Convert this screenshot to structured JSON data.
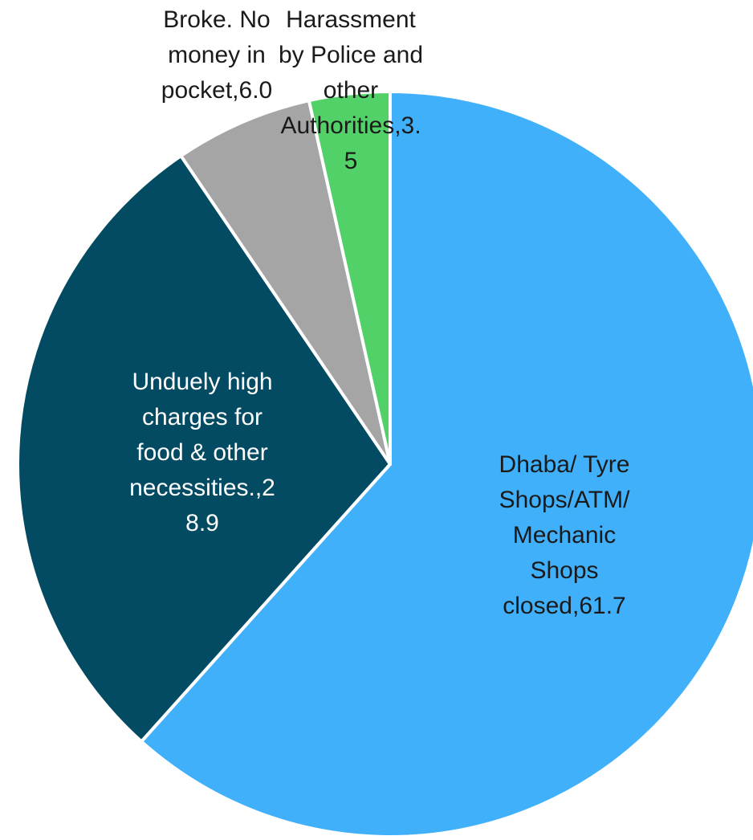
{
  "chart_data": {
    "type": "pie",
    "title": "",
    "start_angle_deg": 0,
    "direction": "clockwise",
    "legend": "none",
    "slices": [
      {
        "label": "Dhaba/ Tyre Shops/ATM/ Mechanic Shops closed",
        "value": 61.7,
        "display": "Dhaba/ Tyre Shops/ATM/ Mechanic Shops closed,61.7",
        "color": "#41b0fa",
        "text_color": "#1a1a1a"
      },
      {
        "label": "Unduely high charges for food & other necessities.",
        "value": 28.9,
        "display": "Unduely high charges for food & other necessities.,28.9",
        "color": "#034b63",
        "text_color": "#ffffff"
      },
      {
        "label": "Broke. No money in pocket",
        "value": 6.0,
        "display": "Broke. No money in pocket,6.0",
        "color": "#a5a5a5",
        "text_color": "#1a1a1a"
      },
      {
        "label": "Harassment by Police and other Authorities",
        "value": 3.5,
        "display": "Harassment by Police and other Authorities,3.5",
        "color": "#53d169",
        "text_color": "#1a1a1a"
      }
    ]
  }
}
